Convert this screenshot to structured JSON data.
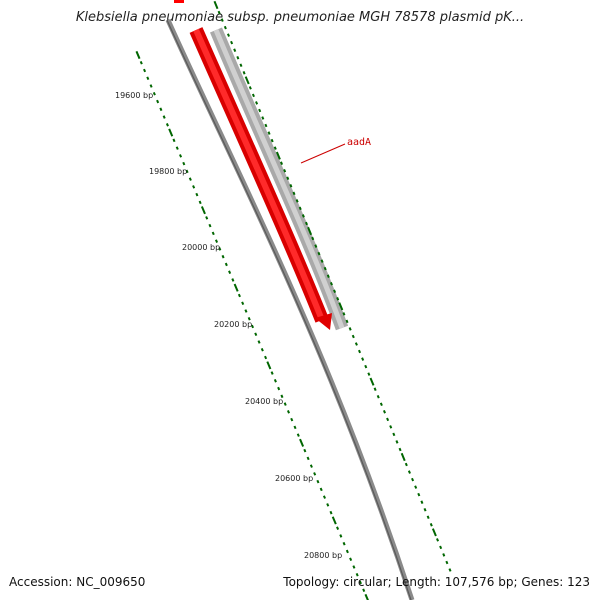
{
  "title": "Klebsiella pneumoniae subsp. pneumoniae MGH 78578 plasmid pK...",
  "accession_text": "Accession: NC_009650",
  "summary_text": "Topology: circular; Length: 107,576 bp; Genes: 123",
  "colors": {
    "backbone": "#777777",
    "gene_forward": "#ff0000",
    "gene_shadow": "#b30000",
    "gc_track": "#bbbbbb",
    "tick": "#006600",
    "label": "#cc0000"
  },
  "ruler": {
    "major_ticks": [
      "19600 bp",
      "19800 bp",
      "20000 bp",
      "20200 bp",
      "20400 bp",
      "20600 bp",
      "20800 bp"
    ]
  },
  "genes": [
    {
      "name": "aadA",
      "strand": "forward"
    }
  ]
}
